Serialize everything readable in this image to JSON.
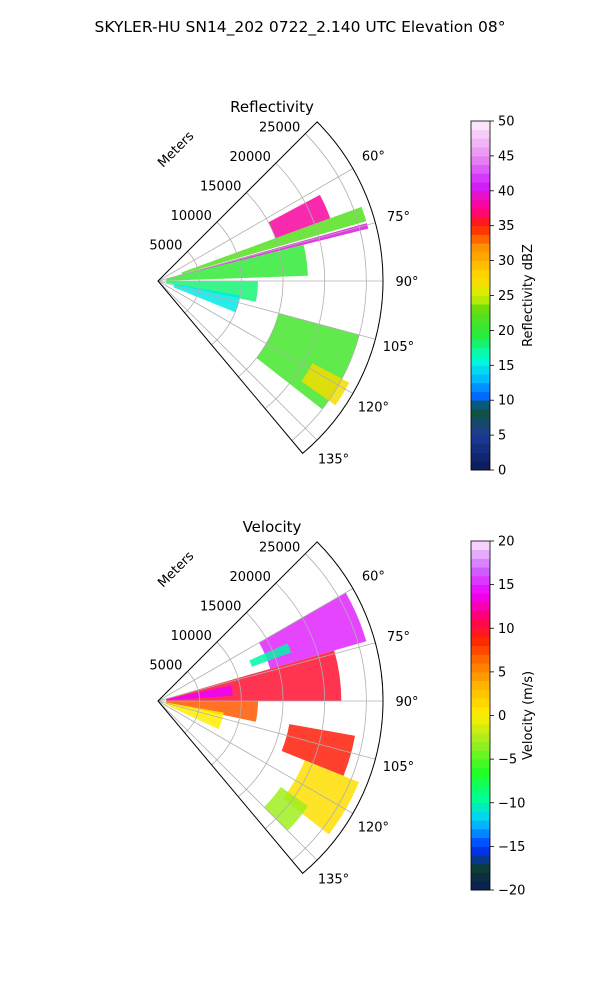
{
  "figure": {
    "suptitle": "SKYLER-HU  SN14_202  0722_2.140 UTC Elevation 08°"
  },
  "chart_data": [
    {
      "type": "heatmap",
      "subtype": "polar-sector-ppi",
      "title": "Reflectivity",
      "radial_axis_label": "Meters",
      "azimuth_range_deg": [
        45,
        140
      ],
      "range_max_m": 27000,
      "range_ticks": [
        5000,
        10000,
        15000,
        20000,
        25000
      ],
      "range_tick_labels": [
        "5000",
        "10000",
        "15000",
        "20000",
        "25000"
      ],
      "azimuth_ticks_deg": [
        60,
        75,
        90,
        105,
        120,
        135
      ],
      "azimuth_tick_labels": [
        "60°",
        "75°",
        "90°",
        "105°",
        "120°",
        "135°"
      ],
      "grid": true,
      "colorbar": {
        "label": "Reflectivity dBZ",
        "range": [
          0,
          50
        ],
        "ticks": [
          0,
          5,
          10,
          15,
          20,
          25,
          30,
          35,
          40,
          45,
          50
        ],
        "tick_labels": [
          "0",
          "5",
          "10",
          "15",
          "20",
          "25",
          "30",
          "35",
          "40",
          "45",
          "50"
        ],
        "colormap": "pyart_HomeyerRainbow"
      },
      "echo_features": [
        {
          "az_range": [
            62,
            70
          ],
          "r_range_m": [
            15000,
            22000
          ],
          "value": 38
        },
        {
          "az_range": [
            70,
            74
          ],
          "r_range_m": [
            3000,
            26000
          ],
          "value": 22
        },
        {
          "az_range": [
            74.5,
            76
          ],
          "r_range_m": [
            1500,
            26000
          ],
          "value": 40
        },
        {
          "az_range": [
            76,
            88
          ],
          "r_range_m": [
            1000,
            18000
          ],
          "value": 20
        },
        {
          "az_range": [
            90,
            102
          ],
          "r_range_m": [
            1000,
            12000
          ],
          "value": 18
        },
        {
          "az_range": [
            100,
            112
          ],
          "r_range_m": [
            2000,
            10000
          ],
          "value": 15
        },
        {
          "az_range": [
            105,
            128
          ],
          "r_range_m": [
            15000,
            25000
          ],
          "value": 21
        },
        {
          "az_range": [
            118,
            125
          ],
          "r_range_m": [
            21000,
            26000
          ],
          "value": 27
        }
      ]
    },
    {
      "type": "heatmap",
      "subtype": "polar-sector-ppi",
      "title": "Velocity",
      "radial_axis_label": "Meters",
      "azimuth_range_deg": [
        45,
        140
      ],
      "range_max_m": 27000,
      "range_ticks": [
        5000,
        10000,
        15000,
        20000,
        25000
      ],
      "range_tick_labels": [
        "5000",
        "10000",
        "15000",
        "20000",
        "25000"
      ],
      "azimuth_ticks_deg": [
        60,
        75,
        90,
        105,
        120,
        135
      ],
      "azimuth_tick_labels": [
        "60°",
        "75°",
        "90°",
        "105°",
        "120°",
        "135°"
      ],
      "grid": true,
      "colorbar": {
        "label": "Velocity (m/s)",
        "range": [
          -20,
          20
        ],
        "ticks": [
          -20,
          -15,
          -10,
          -5,
          0,
          5,
          10,
          15,
          20
        ],
        "tick_labels": [
          "−20",
          "−15",
          "−10",
          "−5",
          "0",
          "5",
          "10",
          "15",
          "20"
        ],
        "colormap": "pyart_BuDRd18"
      },
      "echo_features": [
        {
          "az_range": [
            60,
            74
          ],
          "r_range_m": [
            14000,
            26000
          ],
          "value": 15
        },
        {
          "az_range": [
            66,
            70
          ],
          "r_range_m": [
            12000,
            17000
          ],
          "value": -10
        },
        {
          "az_range": [
            74,
            90
          ],
          "r_range_m": [
            1000,
            22000
          ],
          "value": 10
        },
        {
          "az_range": [
            78,
            86
          ],
          "r_range_m": [
            1000,
            9000
          ],
          "value": 14
        },
        {
          "az_range": [
            90,
            102
          ],
          "r_range_m": [
            1000,
            12000
          ],
          "value": 7
        },
        {
          "az_range": [
            100,
            115
          ],
          "r_range_m": [
            1000,
            8000
          ],
          "value": 0
        },
        {
          "az_range": [
            100,
            112
          ],
          "r_range_m": [
            16000,
            24000
          ],
          "value": 9
        },
        {
          "az_range": [
            112,
            128
          ],
          "r_range_m": [
            19000,
            26000
          ],
          "value": 1
        },
        {
          "az_range": [
            125,
            135
          ],
          "r_range_m": [
            18000,
            22000
          ],
          "value": -3
        }
      ]
    }
  ]
}
